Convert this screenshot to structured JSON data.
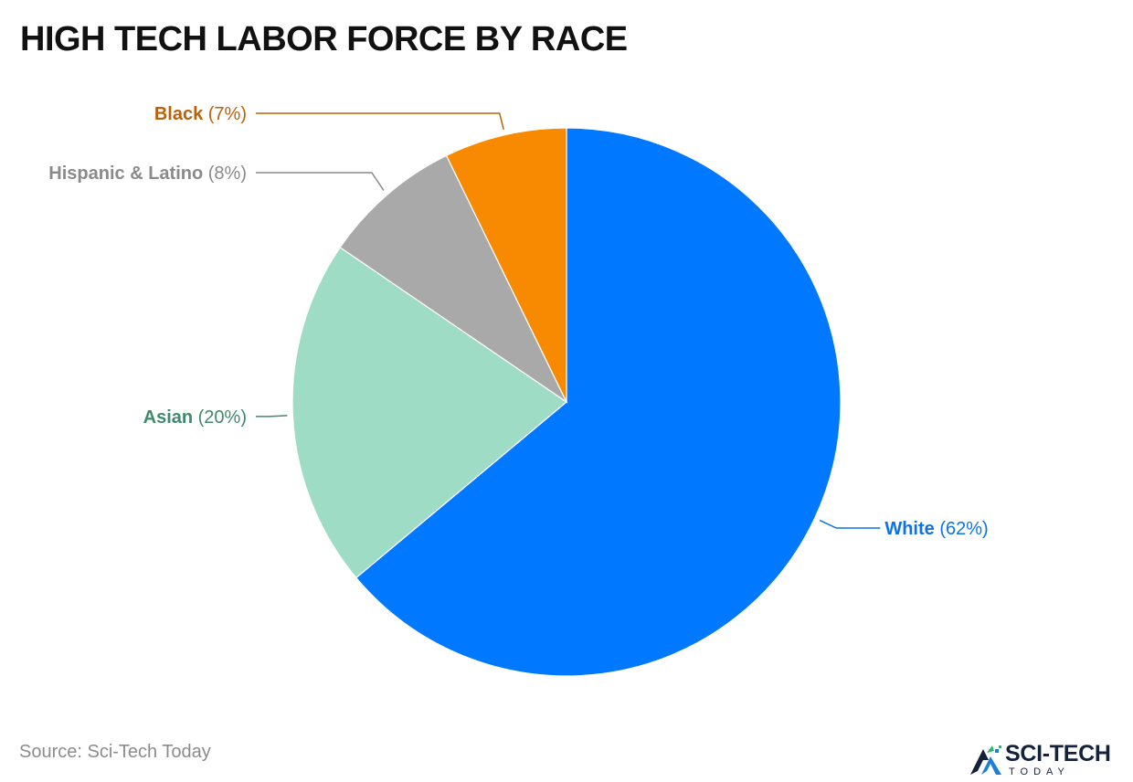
{
  "title": "HIGH TECH LABOR FORCE BY RACE",
  "source": "Source: Sci-Tech Today",
  "logo": {
    "main": "SCI-TECH",
    "sub": "TODAY",
    "icon": "sci-tech-logo-icon"
  },
  "chart_data": {
    "type": "pie",
    "title": "HIGH TECH LABOR FORCE BY RACE",
    "start": "12 o'clock, clockwise",
    "slices": [
      {
        "label": "White",
        "value": 62,
        "display": "(62%)",
        "color": "#0078ff",
        "label_color": "#0a73e8",
        "label_side": "right"
      },
      {
        "label": "Asian",
        "value": 20,
        "display": "(20%)",
        "color": "#9edcc6",
        "label_color": "#3f8a6c",
        "label_side": "left"
      },
      {
        "label": "Hispanic & Latino",
        "value": 8,
        "display": "(8%)",
        "color": "#a9a9a9",
        "label_color": "#8a8a8a",
        "label_side": "left"
      },
      {
        "label": "Black",
        "value": 7,
        "display": "(7%)",
        "color": "#f78a00",
        "label_color": "#b9620a",
        "label_side": "left"
      }
    ]
  }
}
